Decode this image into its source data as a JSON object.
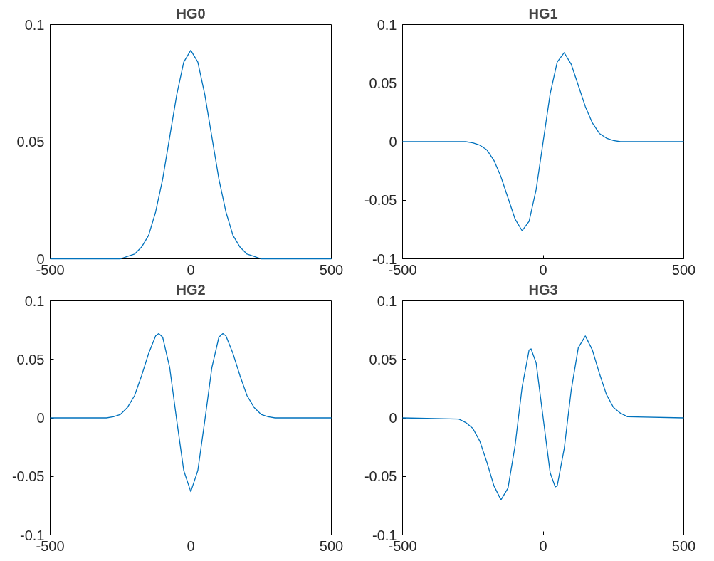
{
  "chart_data": [
    {
      "type": "line",
      "title": "HG0",
      "xlim": [
        -500,
        500
      ],
      "ylim": [
        0,
        0.1
      ],
      "xticks": [
        -500,
        0,
        500
      ],
      "yticks": [
        0,
        0.05,
        0.1
      ],
      "grid": false,
      "marker": "none",
      "line_style": "solid",
      "series": [
        {
          "color": "#0072bd",
          "x": [
            -500,
            -300,
            -275,
            -250,
            -225,
            -200,
            -175,
            -150,
            -125,
            -100,
            -75,
            -50,
            -25,
            0,
            25,
            50,
            75,
            100,
            125,
            150,
            175,
            200,
            225,
            250,
            275,
            300,
            500
          ],
          "values": [
            0,
            0,
            0,
            0,
            0.001,
            0.002,
            0.005,
            0.01,
            0.02,
            0.034,
            0.052,
            0.07,
            0.084,
            0.089,
            0.084,
            0.07,
            0.052,
            0.034,
            0.02,
            0.01,
            0.005,
            0.002,
            0.001,
            0,
            0,
            0,
            0
          ]
        }
      ]
    },
    {
      "type": "line",
      "title": "HG1",
      "xlim": [
        -500,
        500
      ],
      "ylim": [
        -0.1,
        0.1
      ],
      "xticks": [
        -500,
        0,
        500
      ],
      "yticks": [
        -0.1,
        -0.05,
        0,
        0.05,
        0.1
      ],
      "grid": false,
      "marker": "none",
      "line_style": "solid",
      "series": [
        {
          "color": "#0072bd",
          "x": [
            -500,
            -300,
            -275,
            -250,
            -225,
            -200,
            -175,
            -150,
            -125,
            -100,
            -75,
            -50,
            -25,
            0,
            25,
            50,
            75,
            100,
            125,
            150,
            175,
            200,
            225,
            250,
            275,
            300,
            500
          ],
          "values": [
            0,
            0,
            0,
            -0.001,
            -0.003,
            -0.007,
            -0.016,
            -0.03,
            -0.048,
            -0.066,
            -0.076,
            -0.068,
            -0.041,
            0,
            0.041,
            0.068,
            0.076,
            0.066,
            0.048,
            0.03,
            0.016,
            0.007,
            0.003,
            0.001,
            0,
            0,
            0
          ]
        }
      ]
    },
    {
      "type": "line",
      "title": "HG2",
      "xlim": [
        -500,
        500
      ],
      "ylim": [
        -0.1,
        0.1
      ],
      "xticks": [
        -500,
        0,
        500
      ],
      "yticks": [
        -0.1,
        -0.05,
        0,
        0.05,
        0.1
      ],
      "grid": false,
      "marker": "none",
      "line_style": "solid",
      "series": [
        {
          "color": "#0072bd",
          "x": [
            -500,
            -300,
            -275,
            -250,
            -225,
            -200,
            -175,
            -150,
            -125,
            -114,
            -100,
            -75,
            -50,
            -25,
            0,
            25,
            50,
            75,
            100,
            114,
            125,
            150,
            175,
            200,
            225,
            250,
            275,
            300,
            500
          ],
          "values": [
            0,
            0,
            0.001,
            0.003,
            0.009,
            0.019,
            0.036,
            0.055,
            0.07,
            0.072,
            0.069,
            0.043,
            -0.002,
            -0.045,
            -0.063,
            -0.045,
            -0.002,
            0.043,
            0.069,
            0.072,
            0.07,
            0.055,
            0.036,
            0.019,
            0.009,
            0.003,
            0.001,
            0,
            0
          ]
        }
      ]
    },
    {
      "type": "line",
      "title": "HG3",
      "xlim": [
        -500,
        500
      ],
      "ylim": [
        -0.1,
        0.1
      ],
      "xticks": [
        -500,
        0,
        500
      ],
      "yticks": [
        -0.1,
        -0.05,
        0,
        0.05,
        0.1
      ],
      "grid": false,
      "marker": "none",
      "line_style": "solid",
      "series": [
        {
          "color": "#0072bd",
          "x": [
            -500,
            -300,
            -275,
            -250,
            -225,
            -200,
            -175,
            -150,
            -125,
            -100,
            -75,
            -50,
            -43,
            -25,
            0,
            25,
            43,
            50,
            75,
            100,
            125,
            150,
            175,
            200,
            225,
            250,
            275,
            300,
            500
          ],
          "values": [
            0,
            -0.001,
            -0.004,
            -0.009,
            -0.02,
            -0.038,
            -0.058,
            -0.07,
            -0.06,
            -0.024,
            0.026,
            0.058,
            0.059,
            0.047,
            0,
            -0.047,
            -0.059,
            -0.058,
            -0.026,
            0.024,
            0.06,
            0.07,
            0.058,
            0.038,
            0.02,
            0.009,
            0.004,
            0.001,
            0
          ]
        }
      ]
    }
  ]
}
